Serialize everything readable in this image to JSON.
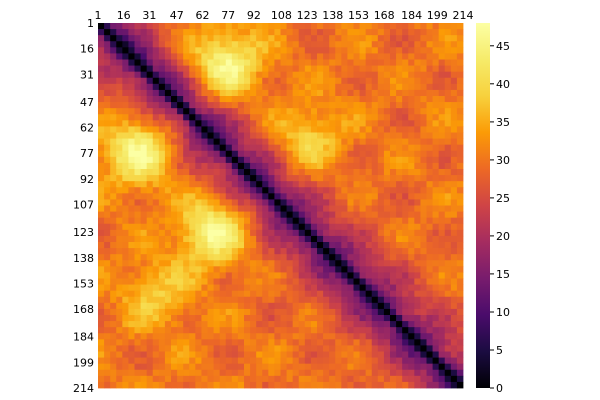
{
  "chart_data": {
    "type": "heatmap",
    "title": "",
    "xlabel": "",
    "ylabel": "",
    "x_ticks": [
      "1",
      "16",
      "31",
      "47",
      "62",
      "77",
      "92",
      "108",
      "123",
      "138",
      "153",
      "168",
      "184",
      "199",
      "214"
    ],
    "y_ticks": [
      "1",
      "16",
      "31",
      "47",
      "62",
      "77",
      "92",
      "107",
      "123",
      "138",
      "153",
      "168",
      "184",
      "199",
      "214"
    ],
    "xlim": [
      1,
      214
    ],
    "ylim": [
      1,
      214
    ],
    "colorbar": {
      "min": 0,
      "max": 48,
      "ticks": [
        "0",
        "5",
        "10",
        "15",
        "20",
        "25",
        "30",
        "35",
        "40",
        "45"
      ],
      "colormap": "inferno"
    },
    "matrix_description": "symmetric distance matrix, zero on the diagonal",
    "hotspots": [
      {
        "i": 25,
        "j": 75,
        "value": 45
      },
      {
        "i": 75,
        "j": 25,
        "value": 45
      },
      {
        "i": 68,
        "j": 123,
        "value": 38
      },
      {
        "i": 123,
        "j": 68,
        "value": 38
      },
      {
        "i": 120,
        "j": 68,
        "value": 35
      },
      {
        "i": 160,
        "j": 35,
        "value": 36
      }
    ]
  }
}
